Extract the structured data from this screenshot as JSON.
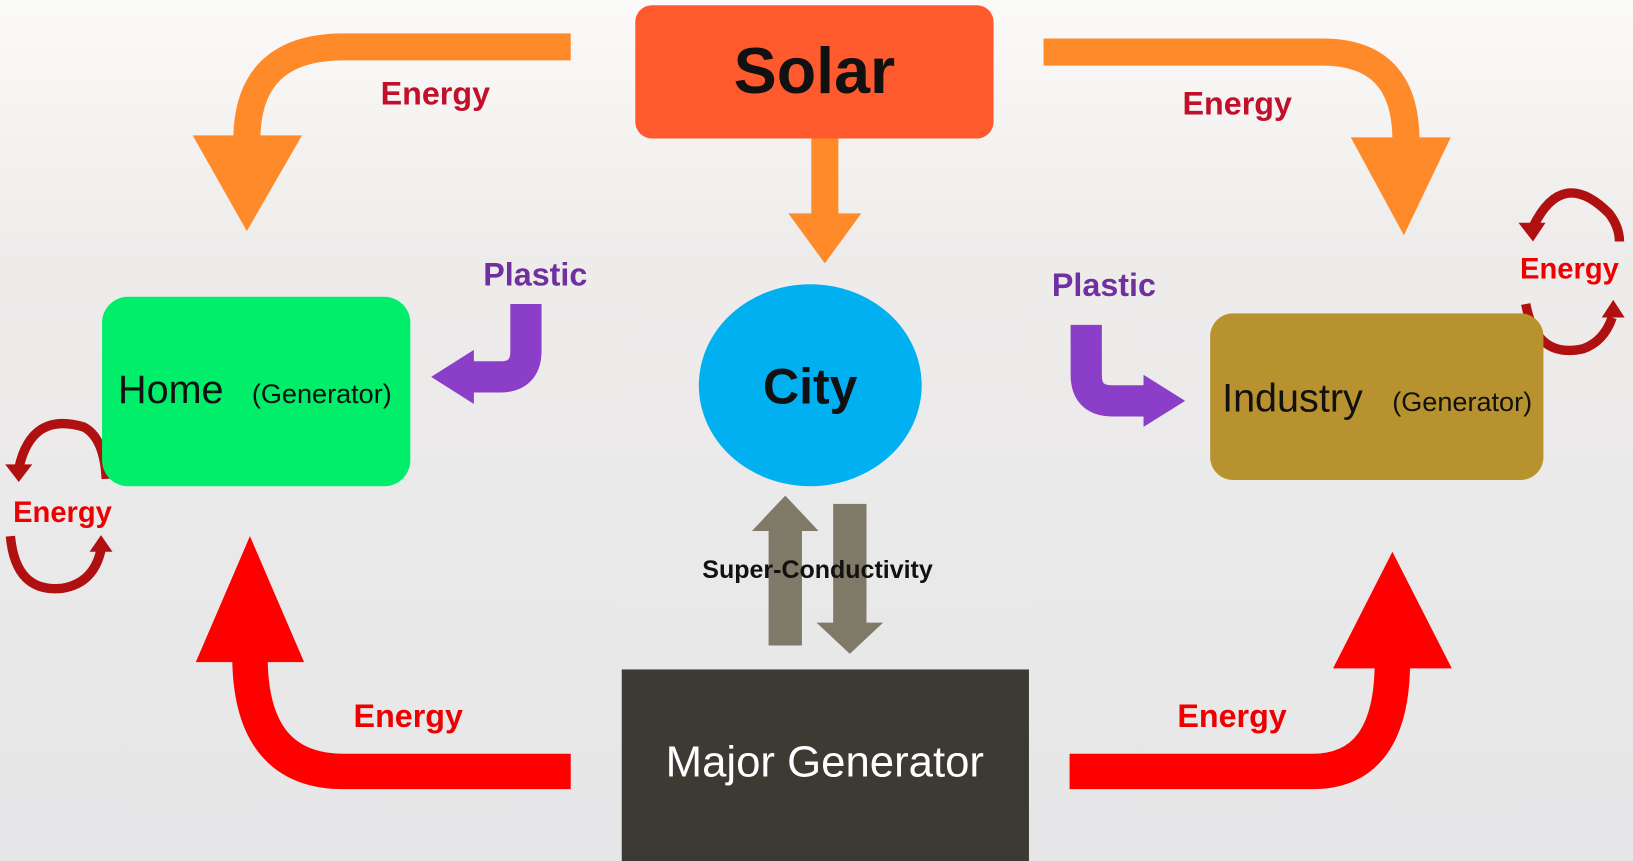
{
  "nodes": [
    {
      "label": "Solar"
    },
    {
      "label": "City"
    },
    {
      "label": "Home",
      "sublabel": "(Generator)"
    },
    {
      "label": "Industry",
      "sublabel": "(Generator)"
    },
    {
      "label": "Major Generator"
    }
  ],
  "edges": [
    {
      "label": "Energy"
    },
    {
      "label": "Energy"
    },
    {
      "label": "Energy"
    },
    {
      "label": "Energy"
    },
    {
      "label": "Plastic"
    },
    {
      "label": "Plastic"
    },
    {
      "label": "Super-Conductivity"
    },
    {
      "label": "Energy"
    },
    {
      "label": "Energy"
    }
  ]
}
